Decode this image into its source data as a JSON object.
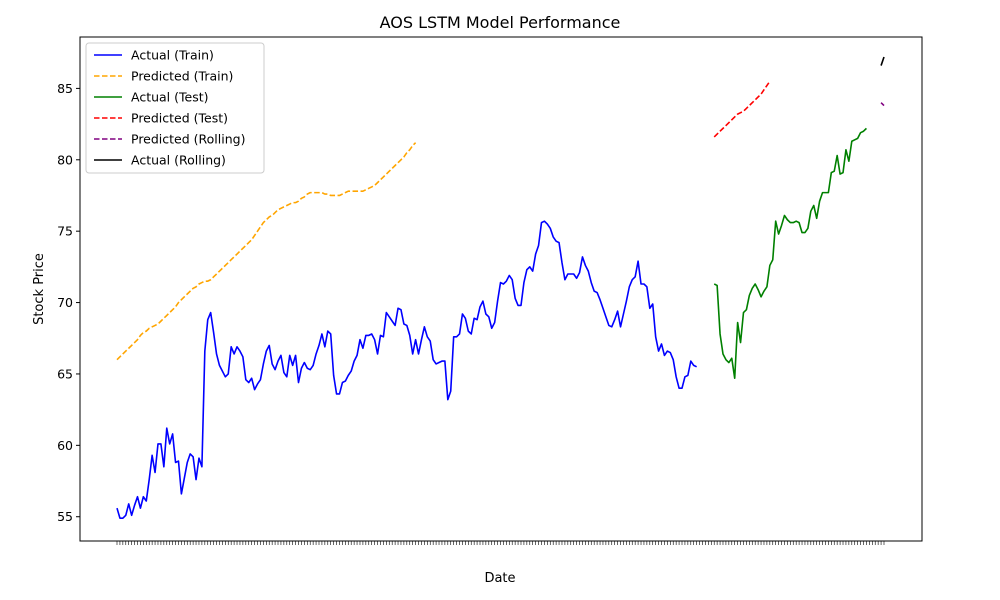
{
  "chart_data": {
    "type": "line",
    "title": "AOS LSTM Model Performance",
    "xlabel": "Date",
    "ylabel": "Stock Price",
    "ylim": [
      53.3,
      88.6
    ],
    "y_ticks": [
      55,
      60,
      65,
      70,
      75,
      80,
      85
    ],
    "grid": false,
    "legend_position": "top-left",
    "series": [
      {
        "name": "Actual (Train)",
        "color": "#0000ff",
        "style": "solid",
        "x_start": 0,
        "values": [
          55.6,
          54.9,
          54.9,
          55.1,
          55.9,
          55.1,
          55.8,
          56.4,
          55.6,
          56.4,
          56.1,
          57.6,
          59.3,
          58.1,
          60.1,
          60.1,
          58.5,
          61.2,
          60.1,
          60.8,
          58.8,
          58.9,
          56.6,
          57.7,
          58.8,
          59.4,
          59.2,
          57.6,
          59.1,
          58.5,
          66.6,
          68.8,
          69.3,
          67.9,
          66.4,
          65.6,
          65.2,
          64.8,
          65.0,
          66.9,
          66.4,
          66.9,
          66.6,
          66.2,
          64.6,
          64.4,
          64.7,
          63.9,
          64.3,
          64.6,
          65.7,
          66.6,
          67.0,
          65.7,
          65.3,
          65.9,
          66.3,
          65.1,
          64.8,
          66.3,
          65.6,
          66.3,
          64.4,
          65.4,
          65.8,
          65.4,
          65.3,
          65.6,
          66.4,
          67.0,
          67.8,
          66.9,
          68.0,
          67.8,
          64.9,
          63.6,
          63.6,
          64.4,
          64.5,
          64.9,
          65.2,
          65.9,
          66.3,
          67.4,
          66.8,
          67.7,
          67.7,
          67.8,
          67.4,
          66.4,
          67.7,
          67.6,
          69.3,
          69.0,
          68.7,
          68.4,
          69.6,
          69.5,
          68.5,
          68.4,
          67.7,
          66.4,
          67.4,
          66.4,
          67.4,
          68.3,
          67.6,
          67.3,
          66.0,
          65.7,
          65.8,
          65.9,
          65.9,
          63.2,
          63.8,
          67.6,
          67.6,
          67.8,
          69.2,
          68.9,
          68.0,
          67.8,
          68.9,
          68.8,
          69.7,
          70.1,
          69.2,
          69.0,
          68.2,
          68.6,
          70.1,
          71.4,
          71.3,
          71.5,
          71.9,
          71.6,
          70.3,
          69.8,
          69.8,
          71.4,
          72.3,
          72.5,
          72.2,
          73.4,
          74.0,
          75.6,
          75.7,
          75.5,
          75.2,
          74.6,
          74.3,
          74.2,
          72.8,
          71.6,
          72.0,
          72.0,
          72.0,
          71.7,
          72.1,
          73.2,
          72.6,
          72.2,
          71.4,
          70.8,
          70.7,
          70.2,
          69.6,
          69.0,
          68.4,
          68.3,
          68.8,
          69.4,
          68.3,
          69.2,
          70.1,
          71.1,
          71.6,
          71.8,
          72.9,
          71.3,
          71.3,
          71.1,
          69.6,
          69.9,
          67.6,
          66.6,
          67.1,
          66.3,
          66.6,
          66.5,
          66.0,
          64.8,
          64.0,
          64.0,
          64.8,
          64.9,
          65.9,
          65.6,
          65.5
        ]
      },
      {
        "name": "Predicted (Train)",
        "color": "#ffa500",
        "style": "dashed",
        "x_start": 0,
        "values": [
          66.0,
          66.2,
          66.4,
          66.6,
          66.8,
          67.0,
          67.2,
          67.4,
          67.7,
          67.9,
          68.0,
          68.2,
          68.3,
          68.4,
          68.5,
          68.7,
          68.9,
          69.1,
          69.3,
          69.5,
          69.7,
          70.0,
          70.2,
          70.4,
          70.6,
          70.8,
          71.0,
          71.1,
          71.3,
          71.4,
          71.5,
          71.5,
          71.6,
          71.8,
          72.0,
          72.2,
          72.4,
          72.6,
          72.8,
          73.0,
          73.2,
          73.4,
          73.6,
          73.8,
          74.0,
          74.2,
          74.4,
          74.7,
          75.0,
          75.3,
          75.6,
          75.8,
          76.0,
          76.1,
          76.3,
          76.5,
          76.6,
          76.7,
          76.8,
          76.9,
          77.0,
          77.0,
          77.1,
          77.3,
          77.4,
          77.6,
          77.7,
          77.7,
          77.7,
          77.7,
          77.7,
          77.6,
          77.6,
          77.5,
          77.5,
          77.5,
          77.5,
          77.6,
          77.7,
          77.8,
          77.8,
          77.8,
          77.8,
          77.8,
          77.8,
          77.9,
          78.0,
          78.1,
          78.2,
          78.4,
          78.6,
          78.8,
          79.0,
          79.2,
          79.4,
          79.6,
          79.8,
          80.0,
          80.2,
          80.5,
          80.7,
          81.0,
          81.2
        ]
      },
      {
        "name": "Actual (Test)",
        "color": "#008000",
        "style": "solid",
        "x_start": 204,
        "values": [
          71.3,
          71.2,
          67.8,
          66.4,
          66.0,
          65.8,
          66.1,
          64.7,
          68.6,
          67.2,
          69.3,
          69.5,
          70.5,
          71.0,
          71.3,
          70.9,
          70.4,
          70.8,
          71.1,
          72.6,
          73.0,
          75.7,
          74.8,
          75.4,
          76.1,
          75.8,
          75.6,
          75.6,
          75.7,
          75.6,
          74.9,
          74.9,
          75.2,
          76.4,
          76.8,
          75.9,
          77.1,
          77.7,
          77.7,
          77.7,
          79.1,
          79.2,
          80.3,
          79.0,
          79.1,
          80.7,
          79.9,
          81.3,
          81.4,
          81.5,
          81.9,
          82.0,
          82.2
        ]
      },
      {
        "name": "Predicted (Test)",
        "color": "#ff0000",
        "style": "dashed",
        "x_start": 204,
        "values": [
          81.6,
          81.8,
          82.0,
          82.2,
          82.4,
          82.6,
          82.8,
          83.0,
          83.2,
          83.3,
          83.4,
          83.6,
          83.8,
          84.0,
          84.2,
          84.4,
          84.6,
          84.9,
          85.2,
          85.5
        ]
      },
      {
        "name": "Predicted (Rolling)",
        "color": "#800080",
        "style": "dashed",
        "x_start": 261,
        "values": [
          84.0,
          83.8
        ]
      },
      {
        "name": "Actual (Rolling)",
        "color": "#000000",
        "style": "solid",
        "x_start": 261,
        "values": [
          86.6,
          87.2
        ]
      }
    ]
  }
}
